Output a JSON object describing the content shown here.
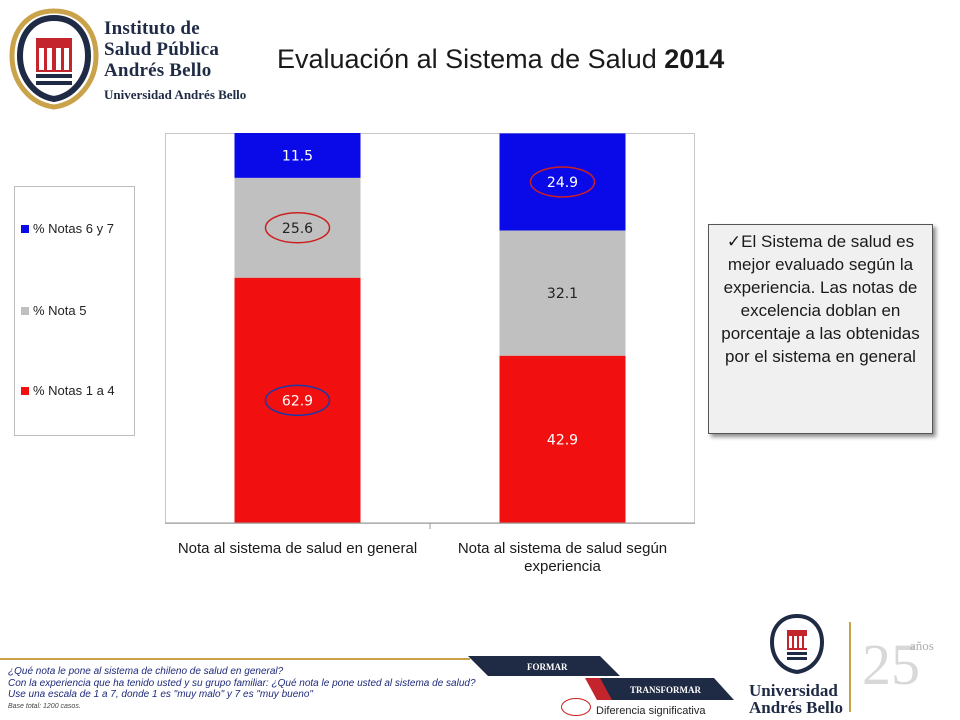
{
  "header": {
    "institute_lines": [
      "Instituto de",
      "Salud Pública",
      "Andrés Bello"
    ],
    "institute_sub": "Universidad Andrés Bello",
    "title_main": "Evaluación al Sistema de Salud",
    "title_year": "2014"
  },
  "legend": [
    {
      "label": "% Notas 6 y 7",
      "color": "#0a0ae8"
    },
    {
      "label": "% Nota 5",
      "color": "#c0c0c0"
    },
    {
      "label": "% Notas 1 a 4",
      "color": "#f20f0f"
    }
  ],
  "chart_data": {
    "type": "bar",
    "stacked": true,
    "categories": [
      "Nota al sistema de salud en general",
      "Nota al sistema de salud según experiencia"
    ],
    "category_lines": [
      [
        "Nota al sistema de salud en general"
      ],
      [
        "Nota al sistema de salud según",
        "experiencia"
      ]
    ],
    "series": [
      {
        "name": "% Notas 1 a 4",
        "values": [
          62.9,
          42.9
        ],
        "color": "#f20f0f",
        "label_color": "#ffffff"
      },
      {
        "name": "% Nota 5",
        "values": [
          25.6,
          32.1
        ],
        "color": "#c0c0c0",
        "label_color": "#222222"
      },
      {
        "name": "% Notas 6 y 7",
        "values": [
          11.5,
          24.9
        ],
        "color": "#0a0ae8",
        "label_color": "#ffffff"
      }
    ],
    "ylim": [
      0,
      100
    ],
    "highlights": [
      {
        "category": 0,
        "series": 0,
        "color": "#1a3aa8"
      },
      {
        "category": 0,
        "series": 1,
        "color": "#cc2020"
      },
      {
        "category": 1,
        "series": 2,
        "color": "#cc2020"
      }
    ]
  },
  "callout": {
    "text": "✓El Sistema de salud es mejor evaluado según la experiencia. Las notas de excelencia doblan en porcentaje a las obtenidas por el sistema en general"
  },
  "footer": {
    "notes": [
      "¿Qué nota le pone al sistema de chileno de salud en general?",
      "Con la experiencia que ha tenido usted y su grupo familiar: ¿Qué nota le pone usted al sistema de salud?",
      "Use una escala de 1 a 7, donde 1 es \"muy malo\" y 7 es \"muy bueno\""
    ],
    "base": "Base total: 1200 casos.",
    "tag_formar": "FORMAR",
    "tag_transformar": "TRANSFORMAR",
    "significance_label": "Diferencia significativa",
    "uab_lines": [
      "Universidad",
      "Andrés Bello"
    ],
    "anos": "años"
  }
}
